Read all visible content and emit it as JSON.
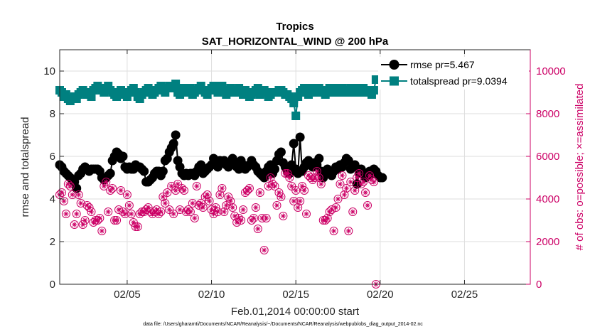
{
  "chart_data": {
    "type": "line",
    "title": "Tropics",
    "subtitle": "SAT_HORIZONTAL_WIND @ 200 hPa",
    "xlabel": "Feb.01,2014 00:00:00 start",
    "ylabel_left": "rmse and totalspread",
    "ylabel_right": "# of obs: o=possible; ×=assimilated",
    "footnote": "data file: /Users/gharamti/Documents/NCAR/Reanalysis/~/Documents/NCAR/Reanalysis/webpub/obs_diag_output_2014-02.nc",
    "xlim": [
      1,
      28.9
    ],
    "ylim_left": [
      0,
      11
    ],
    "ylim_right": [
      0,
      11000
    ],
    "x_ticks": [
      5,
      10,
      15,
      20,
      25
    ],
    "x_tick_labels": [
      "02/05",
      "02/10",
      "02/15",
      "02/20",
      "02/25"
    ],
    "y_left_ticks": [
      0,
      2,
      4,
      6,
      8,
      10
    ],
    "y_left_tick_labels": [
      "0",
      "2",
      "4",
      "6",
      "8",
      "10"
    ],
    "y_right_ticks": [
      0,
      2000,
      4000,
      6000,
      8000,
      10000
    ],
    "y_right_tick_labels": [
      "0",
      "2000",
      "4000",
      "6000",
      "8000",
      "10000"
    ],
    "grid": true,
    "legend_position": "top-right",
    "series": [
      {
        "name": "rmse pr=5.467",
        "axis": "left",
        "color": "#000000",
        "marker": "circle",
        "x_start": 1.0,
        "x_step": 0.125,
        "values": [
          5.6,
          5.5,
          5.3,
          5.2,
          5.1,
          5.0,
          4.9,
          4.8,
          4.5,
          5.1,
          5.2,
          5.4,
          5.5,
          5.4,
          5.3,
          5.4,
          5.4,
          5.4,
          5.4,
          5.3,
          5.0,
          4.9,
          5.0,
          5.1,
          5.2,
          5.8,
          6.0,
          6.2,
          6.1,
          5.9,
          6.0,
          5.5,
          5.4,
          5.5,
          5.4,
          5.4,
          5.6,
          5.5,
          5.5,
          5.4,
          5.3,
          4.8,
          4.8,
          4.9,
          5.0,
          5.2,
          5.3,
          5.3,
          5.1,
          5.3,
          5.8,
          5.9,
          6.2,
          6.4,
          6.6,
          7.0,
          5.8,
          5.5,
          5.2,
          5.1,
          5.2,
          5.1,
          5.2,
          5.2,
          5.1,
          5.3,
          5.5,
          5.6,
          5.2,
          5.3,
          5.4,
          5.5,
          5.6,
          5.9,
          5.6,
          5.5,
          5.8,
          5.7,
          5.8,
          5.6,
          5.5,
          5.6,
          5.9,
          5.7,
          5.5,
          5.4,
          5.8,
          5.6,
          5.4,
          5.5,
          5.6,
          5.8,
          5.6,
          5.5,
          5.3,
          5.2,
          5.1,
          5.0,
          5.3,
          5.5,
          5.6,
          5.2,
          5.4,
          5.8,
          6.1,
          6.2,
          5.7,
          5.5,
          5.3,
          5.2,
          5.6,
          6.6,
          5.4,
          5.2,
          6.9,
          5.3,
          5.5,
          5.7,
          5.8,
          5.6,
          5.5,
          5.7,
          5.6,
          5.9,
          5.3,
          5.0,
          5.2,
          5.4,
          5.2,
          5.1,
          5.3,
          5.5,
          5.4,
          5.6,
          5.5,
          5.7,
          5.9,
          5.8,
          5.4,
          5.5,
          5.6,
          4.7,
          5.2,
          5.4,
          5.2,
          5.0,
          5.1,
          5.3,
          5.2,
          5.4,
          5.3,
          5.1,
          5.0,
          5.0
        ]
      },
      {
        "name": "totalspread pr=9.0394",
        "axis": "left",
        "color": "#008080",
        "marker": "square",
        "x_start": 1.0,
        "x_step": 0.125,
        "values": [
          9.1,
          9.0,
          8.8,
          8.9,
          8.7,
          8.6,
          8.7,
          8.8,
          8.7,
          8.9,
          9.0,
          9.1,
          9.0,
          8.9,
          9.0,
          8.8,
          9.1,
          9.2,
          9.3,
          9.2,
          9.1,
          9.0,
          9.2,
          9.3,
          9.1,
          9.0,
          8.9,
          8.8,
          9.0,
          9.1,
          9.0,
          8.9,
          8.8,
          9.0,
          9.1,
          9.2,
          9.0,
          8.8,
          8.7,
          8.9,
          9.0,
          9.1,
          9.2,
          9.0,
          8.9,
          9.0,
          9.1,
          9.2,
          9.3,
          9.1,
          9.0,
          9.2,
          9.3,
          9.2,
          9.3,
          9.4,
          9.0,
          8.9,
          9.1,
          9.2,
          9.0,
          9.1,
          9.2,
          8.9,
          9.0,
          9.1,
          9.2,
          9.3,
          9.1,
          9.0,
          8.9,
          9.1,
          9.2,
          9.3,
          9.1,
          9.0,
          9.2,
          9.3,
          9.1,
          8.9,
          9.0,
          9.2,
          9.1,
          9.0,
          9.1,
          9.2,
          9.0,
          8.9,
          9.1,
          9.0,
          8.8,
          8.9,
          9.0,
          9.1,
          9.2,
          8.9,
          9.0,
          9.1,
          9.0,
          8.8,
          8.9,
          9.0,
          9.0,
          9.0,
          9.1,
          9.1,
          9.0,
          8.9,
          8.9,
          8.8,
          8.7,
          8.5,
          7.9,
          8.8,
          9.0,
          9.1,
          9.2,
          9.0,
          8.9,
          9.1,
          9.2,
          9.1,
          9.0,
          9.2,
          9.1,
          9.0,
          8.9,
          9.1,
          9.2,
          9.0,
          9.1,
          9.2,
          9.0,
          9.1,
          9.2,
          9.1,
          9.0,
          9.1,
          9.2,
          9.0,
          9.1,
          9.2,
          9.0,
          9.1,
          9.2,
          9.0,
          9.1,
          9.0,
          8.9,
          9.1,
          9.6,
          9.6,
          9.6,
          9.6
        ]
      },
      {
        "name": "# of obs",
        "axis": "right",
        "color": "#cc0066",
        "marker": "circle-asterisk",
        "x_start": 1.0,
        "x_step": 0.125,
        "values": [
          4200,
          4300,
          3900,
          3300,
          4700,
          4600,
          4200,
          2800,
          3300,
          4200,
          3800,
          2800,
          3000,
          3700,
          3600,
          3400,
          2900,
          3000,
          3000,
          3100,
          2500,
          4600,
          4800,
          3400,
          4400,
          4500,
          3000,
          3000,
          3500,
          4400,
          3400,
          3300,
          4200,
          3700,
          3300,
          2900,
          2700,
          2700,
          3300,
          3400,
          3400,
          3500,
          3600,
          3400,
          3300,
          3400,
          3500,
          3300,
          3400,
          4100,
          3800,
          4300,
          3500,
          4600,
          3300,
          4400,
          4700,
          3500,
          4500,
          4400,
          3400,
          3500,
          3400,
          3800,
          3100,
          4600,
          3700,
          3800,
          3600,
          4100,
          4200,
          3900,
          3500,
          3300,
          3600,
          3400,
          4200,
          4500,
          3400,
          3700,
          4100,
          3900,
          3600,
          3200,
          2900,
          3100,
          3000,
          3500,
          4300,
          4400,
          4500,
          3000,
          3100,
          3600,
          2600,
          4300,
          3100,
          1600,
          3100,
          4600,
          5000,
          4700,
          4600,
          3700,
          4300,
          4100,
          3200,
          5200,
          5200,
          5000,
          4600,
          3900,
          4400,
          3600,
          3900,
          4600,
          4400,
          3300,
          5100,
          5000,
          4900,
          5000,
          5300,
          5000,
          4700,
          3000,
          3000,
          3100,
          3400,
          3500,
          2500,
          3600,
          4000,
          4700,
          5100,
          4200,
          4500,
          2500,
          4800,
          3400,
          4400,
          5000,
          5200,
          4700,
          4800,
          4300,
          3700,
          5100,
          4900,
          4800,
          0
        ]
      }
    ]
  }
}
